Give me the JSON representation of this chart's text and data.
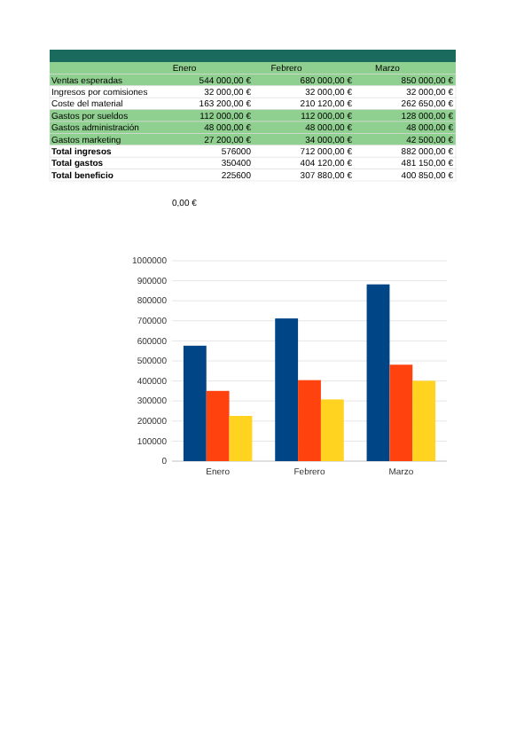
{
  "chart_data": {
    "type": "bar",
    "categories": [
      "Enero",
      "Febrero",
      "Marzo"
    ],
    "series": [
      {
        "color": "#004586",
        "values": [
          576000,
          712000,
          882000
        ]
      },
      {
        "color": "#ff420e",
        "values": [
          350400,
          404120,
          481150
        ]
      },
      {
        "color": "#ffd320",
        "values": [
          225600,
          307880,
          400850
        ]
      }
    ],
    "ylim": [
      0,
      1000000
    ],
    "yticks": [
      0,
      100000,
      200000,
      300000,
      400000,
      500000,
      600000,
      700000,
      800000,
      900000,
      1000000
    ],
    "grid": "y",
    "annotations": [
      "Enero",
      "Febrero",
      "Marzo",
      "Ventas esperadas",
      "544 000,00 €",
      "680 000,00 €",
      "850 000,00 €",
      "Ingresos por comisiones",
      "32 000,00 €",
      "32 000,00 €",
      "32 000,00 €",
      "Coste del material",
      "163 200,00 €",
      "210 120,00 €",
      "262 650,00 €",
      "Gastos por sueldos",
      "112 000,00 €",
      "112 000,00 €",
      "128 000,00 €",
      "Gastos administración",
      "48 000,00 €",
      "48 000,00 €",
      "48 000,00 €",
      "Gastos marketing",
      "27 200,00 €",
      "34 000,00 €",
      "42 500,00 €",
      "Total ingresos",
      "576000",
      "712 000,00 €",
      "882 000,00 €",
      "Total gastos",
      "350400",
      "404 120,00 €",
      "481 150,00 €",
      "Total beneficio",
      "225600",
      "307 880,00 €",
      "400 850,00 €",
      "0,00 €"
    ]
  }
}
